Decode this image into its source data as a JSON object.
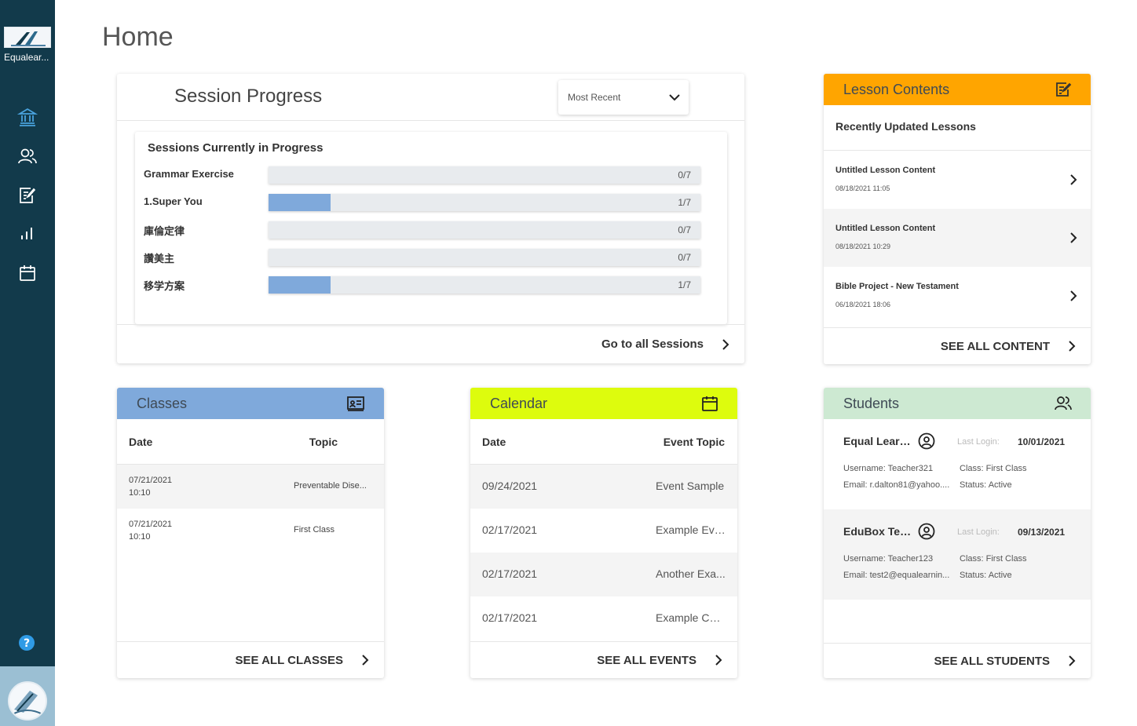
{
  "sidebar": {
    "org_name": "Equalear...",
    "nav": [
      {
        "icon": "institution-icon"
      },
      {
        "icon": "users-icon"
      },
      {
        "icon": "edit-note-icon"
      },
      {
        "icon": "bar-chart-icon"
      },
      {
        "icon": "calendar-icon"
      }
    ],
    "help_icon": "help-icon",
    "bg_color": "#123a4b"
  },
  "page": {
    "title": "Home"
  },
  "session_progress": {
    "title": "Session Progress",
    "filter_value": "Most Recent",
    "inner_title": "Sessions Currently in Progress",
    "rows": [
      {
        "label": "Grammar Exercise",
        "progress": "0/7",
        "fraction": 0
      },
      {
        "label": "1.Super You",
        "progress": "1/7",
        "fraction": 0.1429
      },
      {
        "label": "庫倫定律",
        "progress": "0/7",
        "fraction": 0
      },
      {
        "label": "讚美主",
        "progress": "0/7",
        "fraction": 0
      },
      {
        "label": "移学方案",
        "progress": "1/7",
        "fraction": 0.1429
      }
    ],
    "footer_label": "Go to all Sessions"
  },
  "lessons": {
    "title": "Lesson Contents",
    "header_color": "#ffa500",
    "subtitle": "Recently Updated Lessons",
    "items": [
      {
        "name": "Untitled Lesson Content",
        "date": "08/18/2021 11:05"
      },
      {
        "name": "Untitled Lesson Content",
        "date": "08/18/2021 10:29"
      },
      {
        "name": "Bible Project - New Testament",
        "date": "06/18/2021 18:06"
      }
    ],
    "footer_label": "SEE ALL CONTENT"
  },
  "classes": {
    "title": "Classes",
    "header_color": "#7fa9db",
    "col_date": "Date",
    "col_topic": "Topic",
    "rows": [
      {
        "date": "07/21/2021",
        "time": "10:10",
        "topic": "Preventable Dise..."
      },
      {
        "date": "07/21/2021",
        "time": "10:10",
        "topic": "First Class"
      }
    ],
    "footer_label": "SEE ALL CLASSES"
  },
  "calendar": {
    "title": "Calendar",
    "header_color": "#ddfc0d",
    "col_date": "Date",
    "col_topic": "Event Topic",
    "rows": [
      {
        "date": "09/24/2021",
        "topic": "Event Sample"
      },
      {
        "date": "02/17/2021",
        "topic": "Example Eve..."
      },
      {
        "date": "02/17/2021",
        "topic": "Another Exa..."
      },
      {
        "date": "02/17/2021",
        "topic": "Example Cal..."
      }
    ],
    "footer_label": "SEE ALL EVENTS"
  },
  "students": {
    "title": "Students",
    "header_color": "#cde9d2",
    "last_login_label": "Last Login:",
    "items": [
      {
        "name": "Equal Learn...",
        "last_login": "10/01/2021",
        "username": "Username: Teacher321",
        "class": "Class: First Class",
        "email": "Email: r.dalton81@yahoo....",
        "status": "Status: Active"
      },
      {
        "name": "EduBox Tea...",
        "last_login": "09/13/2021",
        "username": "Username: Teacher123",
        "class": "Class: First Class",
        "email": "Email: test2@equalearnin...",
        "status": "Status: Active"
      }
    ],
    "footer_label": "SEE ALL STUDENTS"
  }
}
